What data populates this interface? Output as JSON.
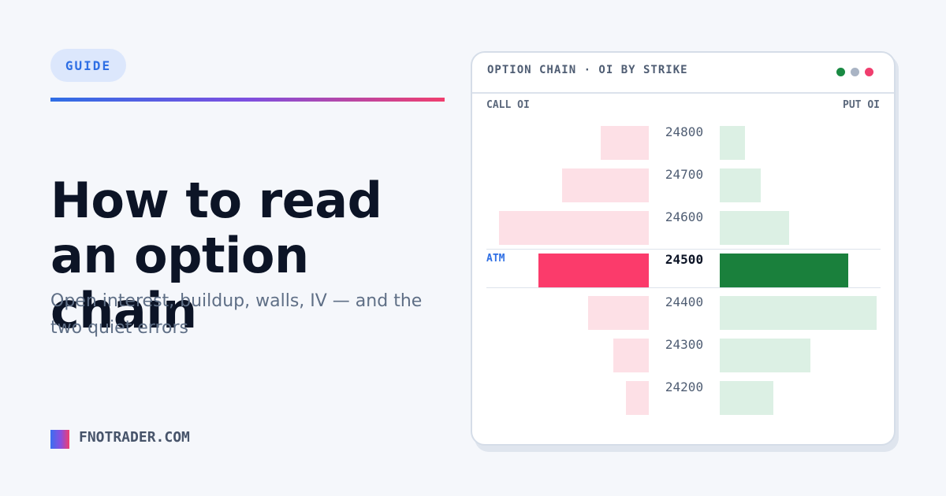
{
  "header": {
    "badge": "GUIDE",
    "title": "How to read an option chain",
    "subtitle": "Open interest, buildup, walls, IV — and the two quiet errors"
  },
  "brand": {
    "name": "FNOTRADER.COM"
  },
  "panel": {
    "title": "OPTION CHAIN · OI BY STRIKE",
    "window_dots": [
      "#1a8a43",
      "#a9b4c4",
      "#f03e6e"
    ],
    "call_header": "CALL OI",
    "put_header": "PUT OI",
    "atm_label": "ATM"
  },
  "colors": {
    "call_light": "#fde0e6",
    "call_atm": "#fb3b6b",
    "put_light": "#dcf0e4",
    "put_atm": "#1a803c"
  },
  "chart_data": {
    "type": "bar",
    "categories": [
      "24800",
      "24700",
      "24600",
      "24500",
      "24400",
      "24300",
      "24200"
    ],
    "atm_strike": "24500",
    "series": [
      {
        "name": "CALL OI",
        "values": [
          61,
          110,
          190,
          140,
          77,
          45,
          29
        ]
      },
      {
        "name": "PUT OI",
        "values": [
          32,
          52,
          88,
          163,
          199,
          115,
          68
        ]
      }
    ]
  }
}
